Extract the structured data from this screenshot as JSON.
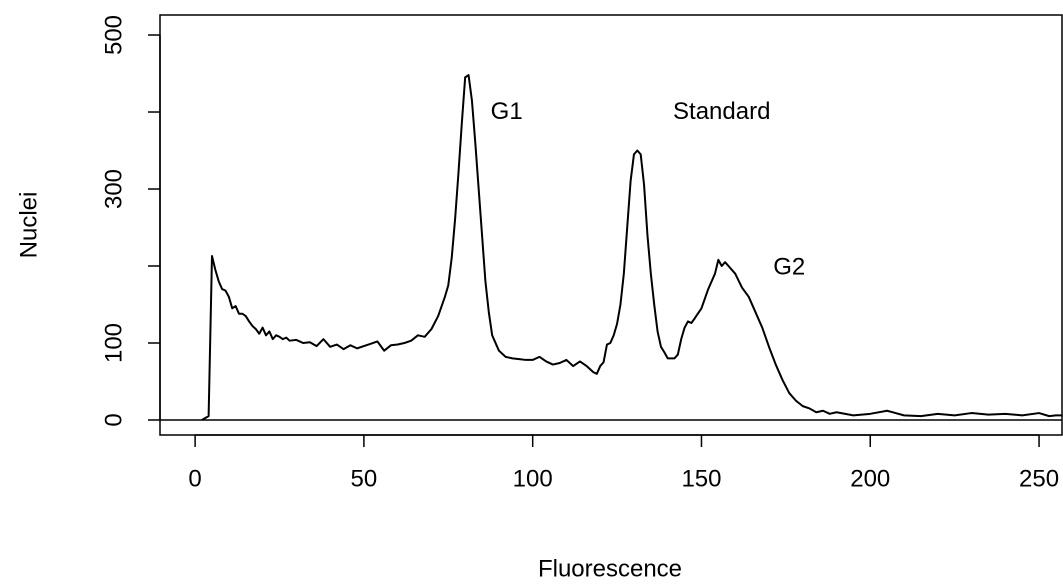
{
  "chart_data": {
    "type": "line",
    "xlabel": "Fluorescence",
    "ylabel": "Nuclei",
    "x": [
      2,
      4,
      5,
      6,
      7,
      8,
      9,
      10,
      11,
      12,
      13,
      14,
      15,
      16,
      17,
      18,
      19,
      20,
      21,
      22,
      23,
      24,
      25,
      26,
      27,
      28,
      30,
      32,
      34,
      36,
      38,
      40,
      42,
      44,
      46,
      48,
      50,
      52,
      54,
      56,
      58,
      60,
      62,
      64,
      66,
      68,
      70,
      72,
      74,
      75,
      76,
      77,
      78,
      79,
      80,
      81,
      82,
      83,
      84,
      85,
      86,
      87,
      88,
      90,
      92,
      94,
      96,
      98,
      100,
      102,
      104,
      106,
      108,
      110,
      112,
      114,
      116,
      118,
      119,
      120,
      121,
      122,
      123,
      124,
      125,
      126,
      127,
      128,
      129,
      130,
      131,
      132,
      133,
      134,
      135,
      136,
      137,
      138,
      139,
      140,
      141,
      142,
      143,
      144,
      145,
      146,
      147,
      148,
      150,
      152,
      154,
      155,
      156,
      157,
      158,
      160,
      162,
      164,
      166,
      168,
      170,
      172,
      174,
      176,
      178,
      180,
      182,
      184,
      186,
      188,
      190,
      195,
      200,
      205,
      210,
      215,
      220,
      225,
      230,
      235,
      240,
      245,
      250,
      253,
      255,
      257
    ],
    "values": [
      0,
      5,
      213,
      195,
      180,
      170,
      168,
      160,
      145,
      148,
      138,
      138,
      135,
      128,
      122,
      118,
      112,
      120,
      110,
      115,
      105,
      110,
      108,
      105,
      107,
      103,
      104,
      100,
      101,
      96,
      105,
      95,
      98,
      92,
      97,
      93,
      96,
      99,
      102,
      90,
      97,
      98,
      100,
      103,
      110,
      108,
      118,
      135,
      160,
      175,
      210,
      260,
      320,
      385,
      445,
      448,
      415,
      360,
      300,
      240,
      180,
      140,
      110,
      90,
      82,
      80,
      79,
      78,
      78,
      82,
      76,
      72,
      74,
      78,
      70,
      76,
      70,
      62,
      60,
      70,
      75,
      98,
      100,
      110,
      125,
      150,
      190,
      250,
      310,
      345,
      350,
      345,
      305,
      240,
      190,
      150,
      115,
      95,
      88,
      80,
      80,
      80,
      85,
      105,
      120,
      128,
      126,
      132,
      145,
      170,
      190,
      208,
      200,
      205,
      200,
      190,
      172,
      160,
      140,
      120,
      95,
      72,
      52,
      35,
      25,
      18,
      15,
      10,
      12,
      8,
      10,
      6,
      8,
      12,
      6,
      5,
      8,
      6,
      9,
      7,
      8,
      6,
      9,
      5,
      6,
      6
    ],
    "color": "#000000",
    "hline": 0,
    "xlim": [
      -10.4,
      256.8
    ],
    "ylim": [
      -19.5,
      526
    ],
    "xticks": [
      0,
      50,
      100,
      150,
      200,
      250
    ],
    "yticks": [
      0,
      100,
      300,
      500
    ],
    "yticks_unlabeled": [
      200,
      400
    ],
    "annotations": [
      {
        "text": "G1",
        "x": 92.3,
        "y": 399
      },
      {
        "text": "Standard",
        "x": 156,
        "y": 399
      },
      {
        "text": "G2",
        "x": 176,
        "y": 197
      }
    ]
  }
}
